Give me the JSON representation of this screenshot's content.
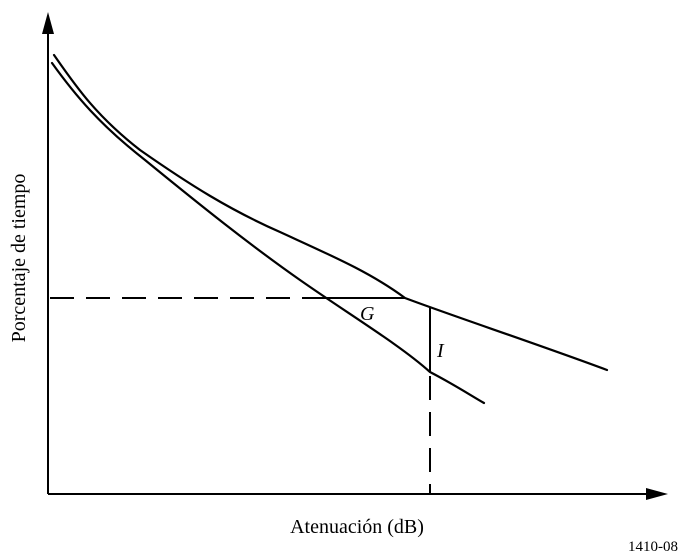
{
  "diagram": {
    "y_axis_label": "Porcentaje de tiempo",
    "x_axis_label": "Atenuación (dB)",
    "annotation_g": "G",
    "annotation_i": "I",
    "figure_id": "1410-08"
  }
}
